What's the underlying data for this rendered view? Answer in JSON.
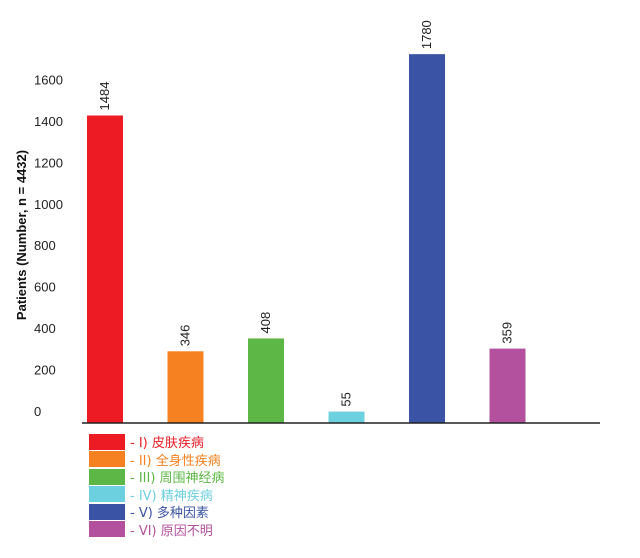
{
  "chart_data": {
    "type": "bar",
    "ylabel": "Patients (Number, n = 4432)",
    "ylim": [
      0,
      1800
    ],
    "yticks": [
      0,
      200,
      400,
      600,
      800,
      1000,
      1200,
      1400,
      1600
    ],
    "categories": [
      "I)",
      "II)",
      "III)",
      "IV)",
      "V)",
      "VI)"
    ],
    "values": [
      1484,
      346,
      408,
      55,
      1780,
      359
    ],
    "colors": [
      "#ed1c24",
      "#f68121",
      "#5cb746",
      "#6cd0de",
      "#3a53a4",
      "#b3519f"
    ],
    "legend": [
      {
        "label": "- I)  皮肤疾病",
        "color": "#ed1c24"
      },
      {
        "label": "- II)  全身性疾病",
        "color": "#f68121"
      },
      {
        "label": "- III)  周围神经病",
        "color": "#5cb746"
      },
      {
        "label": "- IV)  精神疾病",
        "color": "#6cd0de"
      },
      {
        "label": "- V)  多种因素",
        "color": "#3a53a4"
      },
      {
        "label": "- VI)  原因不明",
        "color": "#b3519f"
      }
    ],
    "legend_position": "bottom-left",
    "grid": false
  }
}
